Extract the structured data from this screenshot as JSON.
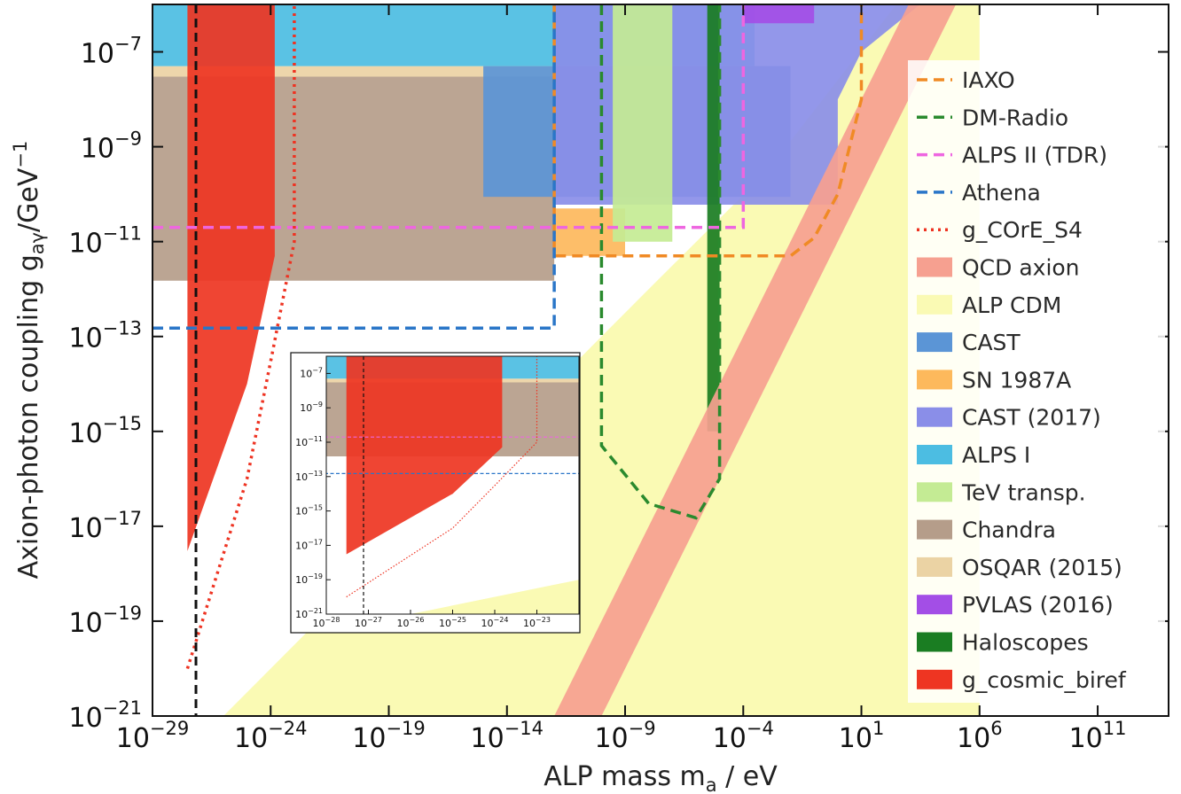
{
  "chart_data": {
    "type": "area",
    "title": "",
    "xlabel": "ALP mass m",
    "xlabel_sub": "a",
    "xlabel_unit": " / eV",
    "ylabel": "Axion-photon coupling g",
    "ylabel_sub": "aγ",
    "ylabel_unit": "/GeV",
    "ylabel_unit_exp": "−1",
    "x_scale": "log",
    "y_scale": "log",
    "xlim": [
      1e-29,
      100000000000000.0
    ],
    "ylim": [
      1e-21,
      1e-06
    ],
    "x_ticks": [
      {
        "base": "10",
        "exp": "−29",
        "value": 1e-29
      },
      {
        "base": "10",
        "exp": "−24",
        "value": 1e-24
      },
      {
        "base": "10",
        "exp": "−19",
        "value": 1e-19
      },
      {
        "base": "10",
        "exp": "−14",
        "value": 1e-14
      },
      {
        "base": "10",
        "exp": "−9",
        "value": 1e-09
      },
      {
        "base": "10",
        "exp": "−4",
        "value": 0.0001
      },
      {
        "base": "10",
        "exp": "1",
        "value": 10.0
      },
      {
        "base": "10",
        "exp": "6",
        "value": 1000000.0
      },
      {
        "base": "10",
        "exp": "11",
        "value": 100000000000.0
      }
    ],
    "y_ticks": [
      {
        "base": "10",
        "exp": "−21",
        "value": 1e-21
      },
      {
        "base": "10",
        "exp": "−19",
        "value": 1e-19
      },
      {
        "base": "10",
        "exp": "−17",
        "value": 1e-17
      },
      {
        "base": "10",
        "exp": "−15",
        "value": 1e-15
      },
      {
        "base": "10",
        "exp": "−13",
        "value": 1e-13
      },
      {
        "base": "10",
        "exp": "−11",
        "value": 1e-11
      },
      {
        "base": "10",
        "exp": "−9",
        "value": 1e-09
      },
      {
        "base": "10",
        "exp": "−7",
        "value": 1e-07
      }
    ],
    "legend": {
      "placement": "right",
      "entries": [
        {
          "label": "IAXO",
          "style": "dashed",
          "color": "#f08a24"
        },
        {
          "label": "DM-Radio",
          "style": "dashed",
          "color": "#2a8a2e"
        },
        {
          "label": "ALPS II (TDR)",
          "style": "dashed",
          "color": "#ee66e0"
        },
        {
          "label": "Athena",
          "style": "dashed",
          "color": "#2a76c8"
        },
        {
          "label": "g_COrE_S4",
          "style": "dotted",
          "color": "#ee3322"
        },
        {
          "label": "QCD axion",
          "style": "patch",
          "color": "#f6a090"
        },
        {
          "label": "ALP CDM",
          "style": "patch",
          "color": "#fafab4"
        },
        {
          "label": "CAST",
          "style": "patch",
          "color": "#5b95d6"
        },
        {
          "label": "SN 1987A",
          "style": "patch",
          "color": "#fdb95c"
        },
        {
          "label": "CAST (2017)",
          "style": "patch",
          "color": "#8a8ee8"
        },
        {
          "label": "ALPS I",
          "style": "patch",
          "color": "#4cbde2"
        },
        {
          "label": "TeV transp.",
          "style": "patch",
          "color": "#c4eb94"
        },
        {
          "label": "Chandra",
          "style": "patch",
          "color": "#b59d8a"
        },
        {
          "label": "OSQAR (2015)",
          "style": "patch",
          "color": "#ebd3a4"
        },
        {
          "label": "PVLAS (2016)",
          "style": "patch",
          "color": "#a34ee6"
        },
        {
          "label": "Haloscopes",
          "style": "patch",
          "color": "#1a7d22"
        },
        {
          "label": "g_cosmic_biref",
          "style": "patch",
          "color": "#ee3522"
        }
      ]
    },
    "regions": [
      {
        "name": "ALP CDM",
        "color": "#fafab4",
        "points": [
          [
            1e-26,
            1e-21
          ],
          [
            1000000.0,
            1e-21
          ],
          [
            1000000.0,
            1e-06
          ],
          [
            300.0,
            1e-06
          ],
          [
            0.001,
            3e-10
          ],
          [
            1e-08,
            1e-12
          ],
          [
            1e-20,
            1e-18
          ]
        ]
      },
      {
        "name": "Chandra",
        "color": "#b59d8a",
        "points": [
          [
            1e-29,
            1.5e-12
          ],
          [
            1e-12,
            1.5e-12
          ],
          [
            1e-12,
            3e-08
          ],
          [
            1e-29,
            3e-08
          ]
        ]
      },
      {
        "name": "OSQAR (2015)",
        "color": "#ebd3a4",
        "points": [
          [
            1e-29,
            3e-08
          ],
          [
            0.001,
            3e-08
          ],
          [
            0.001,
            5e-08
          ],
          [
            1e-29,
            5e-08
          ]
        ]
      },
      {
        "name": "ALPS I",
        "color": "#4cbde2",
        "points": [
          [
            1e-29,
            5e-08
          ],
          [
            0.0003,
            5e-08
          ],
          [
            0.0003,
            1e-06
          ],
          [
            1e-29,
            1e-06
          ]
        ]
      },
      {
        "name": "CAST",
        "color": "#5b95d6",
        "points": [
          [
            1e-15,
            8.8e-11
          ],
          [
            0.01,
            8.8e-11
          ],
          [
            0.01,
            5e-08
          ],
          [
            1e-15,
            5e-08
          ]
        ]
      },
      {
        "name": "SN 1987A",
        "color": "#fdb95c",
        "points": [
          [
            1e-12,
            5e-12
          ],
          [
            1e-09,
            5e-12
          ],
          [
            1e-09,
            5e-11
          ],
          [
            1e-12,
            5e-11
          ]
        ]
      },
      {
        "name": "CAST (2017)",
        "color": "#8a8ee8",
        "points": [
          [
            1e-12,
            6e-11
          ],
          [
            1.0,
            6e-11
          ],
          [
            1.0,
            1e-08
          ],
          [
            10.0,
            1e-07
          ],
          [
            3000.0,
            1e-06
          ],
          [
            1e-12,
            1e-06
          ]
        ]
      },
      {
        "name": "TeV transp.",
        "color": "#c4eb94",
        "points": [
          [
            3e-10,
            1e-11
          ],
          [
            1e-07,
            1e-11
          ],
          [
            1e-07,
            1e-06
          ],
          [
            3e-10,
            1e-06
          ]
        ]
      },
      {
        "name": "PVLAS (2016)",
        "color": "#a34ee6",
        "points": [
          [
            0.0001,
            4e-07
          ],
          [
            0.1,
            4e-07
          ],
          [
            0.1,
            1e-06
          ],
          [
            0.0001,
            1e-06
          ]
        ]
      },
      {
        "name": "Haloscopes",
        "color": "#1a7d22",
        "points": [
          [
            3e-06,
            1e-15
          ],
          [
            1e-05,
            1e-15
          ],
          [
            1e-05,
            1e-06
          ],
          [
            3e-06,
            1e-06
          ]
        ]
      },
      {
        "name": "QCD axion",
        "color": "#f6a090",
        "points": [
          [
            1e-12,
            1e-21
          ],
          [
            1e-10,
            1e-21
          ],
          [
            100000.0,
            1e-06
          ],
          [
            1000.0,
            1e-06
          ]
        ]
      },
      {
        "name": "g_cosmic_biref",
        "color": "#ee3522",
        "points": [
          [
            3e-28,
            3e-18
          ],
          [
            1e-25,
            1e-14
          ],
          [
            1.5e-24,
            5e-12
          ],
          [
            1.5e-24,
            1e-06
          ],
          [
            3e-28,
            1e-06
          ]
        ]
      }
    ],
    "lines": [
      {
        "name": "IAXO",
        "style": "dashed",
        "color": "#f08a24",
        "points": [
          [
            1e-12,
            1e-06
          ],
          [
            1e-12,
            5e-12
          ],
          [
            0.01,
            5e-12
          ],
          [
            0.1,
            1.2e-11
          ],
          [
            1.0,
            1e-10
          ],
          [
            10.0,
            1e-08
          ],
          [
            10.0,
            1e-06
          ]
        ]
      },
      {
        "name": "DM-Radio",
        "style": "dashed",
        "color": "#2a8a2e",
        "points": [
          [
            1e-10,
            1e-06
          ],
          [
            1e-10,
            5e-16
          ],
          [
            1e-08,
            3e-17
          ],
          [
            1e-06,
            1.5e-17
          ],
          [
            1e-05,
            1e-16
          ],
          [
            1e-05,
            1e-06
          ]
        ]
      },
      {
        "name": "ALPS II (TDR)",
        "style": "dashed",
        "color": "#ee66e0",
        "points": [
          [
            1e-29,
            2e-11
          ],
          [
            0.0001,
            2e-11
          ],
          [
            0.0001,
            1e-06
          ]
        ]
      },
      {
        "name": "Athena",
        "style": "dashed",
        "color": "#2a76c8",
        "points": [
          [
            1e-29,
            1.5e-13
          ],
          [
            1e-12,
            1.5e-13
          ],
          [
            1e-12,
            1e-06
          ]
        ]
      },
      {
        "name": "g_COrE_S4",
        "style": "dotted",
        "color": "#ee3322",
        "points": [
          [
            3e-28,
            1e-20
          ],
          [
            1e-25,
            1e-16
          ],
          [
            1e-24,
            3e-14
          ],
          [
            1e-23,
            1e-11
          ],
          [
            1e-23,
            1e-06
          ]
        ]
      }
    ],
    "inset": {
      "xlim": [
        1e-28,
        1e-22
      ],
      "ylim": [
        1e-21,
        1e-06
      ],
      "x_ticks": [
        {
          "base": "10",
          "exp": "−28",
          "value": 1e-28
        },
        {
          "base": "10",
          "exp": "−27",
          "value": 1e-27
        },
        {
          "base": "10",
          "exp": "−26",
          "value": 1e-26
        },
        {
          "base": "10",
          "exp": "−25",
          "value": 1e-25
        },
        {
          "base": "10",
          "exp": "−24",
          "value": 1e-24
        },
        {
          "base": "10",
          "exp": "−23",
          "value": 1e-23
        }
      ],
      "y_ticks": [
        {
          "base": "10",
          "exp": "−21",
          "value": 1e-21
        },
        {
          "base": "10",
          "exp": "−19",
          "value": 1e-19
        },
        {
          "base": "10",
          "exp": "−17",
          "value": 1e-17
        },
        {
          "base": "10",
          "exp": "−15",
          "value": 1e-15
        },
        {
          "base": "10",
          "exp": "−13",
          "value": 1e-13
        },
        {
          "base": "10",
          "exp": "−11",
          "value": 1e-11
        },
        {
          "base": "10",
          "exp": "−9",
          "value": 1e-09
        },
        {
          "base": "10",
          "exp": "−7",
          "value": 1e-07
        }
      ]
    }
  }
}
